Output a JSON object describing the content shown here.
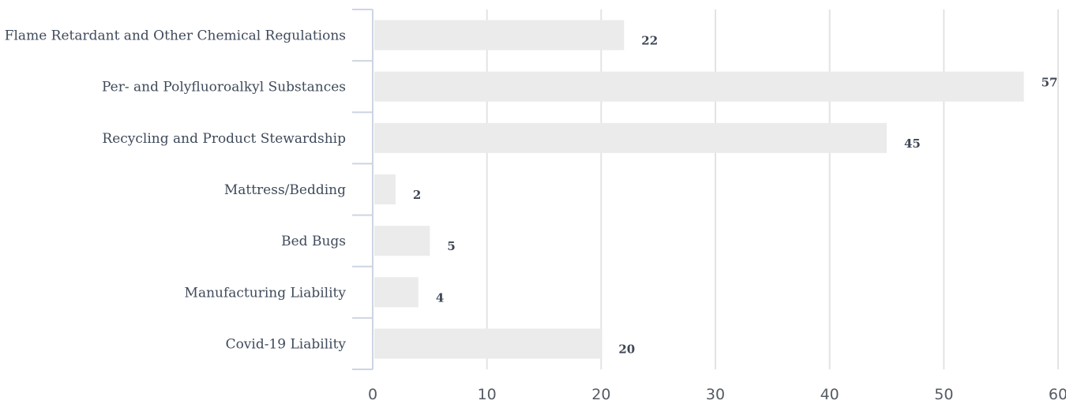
{
  "chart_data": {
    "type": "bar",
    "orientation": "horizontal",
    "categories": [
      "Flame Retardant and Other Chemical Regulations",
      "Per- and Polyfluoroalkyl Substances",
      "Recycling and Product Stewardship",
      "Mattress/Bedding",
      "Bed Bugs",
      "Manufacturing Liability",
      "Covid-19 Liability"
    ],
    "values": [
      22,
      57,
      45,
      2,
      5,
      4,
      20
    ],
    "xlim": [
      0,
      60
    ],
    "xticks": [
      0,
      10,
      20,
      30,
      40,
      50,
      60
    ],
    "xtick_labels": [
      "0",
      "10",
      "20",
      "30",
      "40",
      "50",
      "60"
    ],
    "value_labels": [
      "22",
      "57",
      "45",
      "2",
      "5",
      "4",
      "20"
    ],
    "grid": true,
    "legend": "none",
    "title": "",
    "xlabel": "",
    "ylabel": ""
  },
  "colors": {
    "bar": "#ebebeb",
    "grid": "#e3e3e3",
    "axis": "#cdd5e3",
    "category_text": "#3f4a5a",
    "value_text": "#3d4654",
    "tick_text": "#555b63"
  }
}
